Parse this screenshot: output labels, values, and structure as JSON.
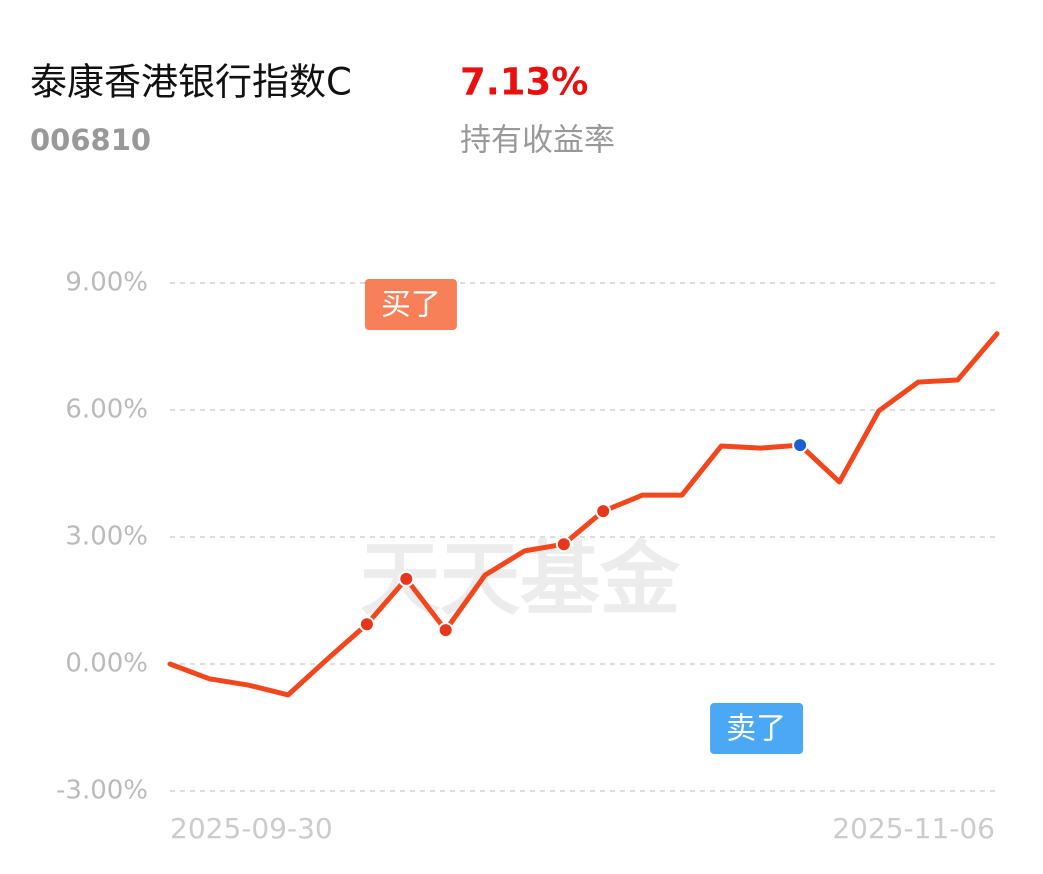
{
  "header": {
    "title": "泰康香港银行指数C",
    "code": "006810",
    "return_text": "7.13%",
    "return_label": "持有收益率"
  },
  "chart_data": {
    "type": "line",
    "watermark": "天天基金",
    "categories": [
      "2025-09-30",
      null,
      null,
      null,
      null,
      null,
      null,
      null,
      null,
      null,
      null,
      null,
      null,
      null,
      null,
      null,
      null,
      null,
      null,
      null,
      null,
      "2025-11-06"
    ],
    "series": [
      {
        "color": "#f2471c",
        "values": [
          0.0,
          -0.35,
          -0.5,
          -0.73,
          0.12,
          0.94,
          2.01,
          0.8,
          2.1,
          2.67,
          2.83,
          3.61,
          3.99,
          3.99,
          5.15,
          5.1,
          5.17,
          4.3,
          5.98,
          6.66,
          6.71,
          7.8
        ]
      }
    ],
    "ylim": [
      -3,
      9
    ],
    "yticks": [
      {
        "value": 9,
        "label": "9.00%"
      },
      {
        "value": 6,
        "label": "6.00%"
      },
      {
        "value": 3,
        "label": "3.00%"
      },
      {
        "value": 0,
        "label": "0.00%"
      },
      {
        "value": -3,
        "label": "-3.00%"
      }
    ],
    "grid": true,
    "marked_points": [
      5,
      6,
      7,
      10,
      11
    ],
    "buy": {
      "index": 5,
      "label": "买了",
      "color": "#f78058"
    },
    "sell": {
      "index": 16,
      "label": "卖了",
      "color": "#4aa8f4"
    }
  }
}
